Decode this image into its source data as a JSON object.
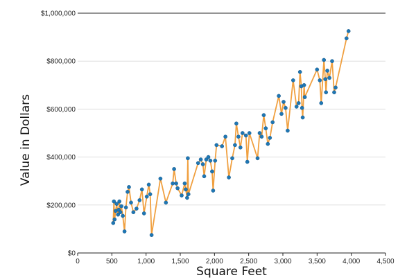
{
  "chart_data": {
    "type": "line",
    "xlabel": "Square Feet",
    "ylabel": "Value in Dollars",
    "xlim": [
      0,
      4500
    ],
    "ylim": [
      0,
      1000000
    ],
    "x_ticks": [
      0,
      500,
      1000,
      1500,
      2000,
      2500,
      3000,
      3500,
      4000,
      4500
    ],
    "x_tick_labels": [
      "0",
      "500",
      "1,000",
      "1,500",
      "2,000",
      "2,500",
      "3,000",
      "3,500",
      "4,000",
      "4,500"
    ],
    "y_ticks": [
      0,
      200000,
      400000,
      600000,
      800000,
      1000000
    ],
    "y_tick_labels": [
      "$0",
      "$200,000",
      "$400,000",
      "$600,000",
      "$800,000",
      "$1,000,000"
    ],
    "grid": "horizontal",
    "line_color": "#f0a040",
    "marker_color": "#1f77b4",
    "points": [
      {
        "x": 520,
        "y": 125000
      },
      {
        "x": 530,
        "y": 215000
      },
      {
        "x": 540,
        "y": 140000
      },
      {
        "x": 555,
        "y": 175000
      },
      {
        "x": 570,
        "y": 205000
      },
      {
        "x": 590,
        "y": 160000
      },
      {
        "x": 600,
        "y": 180000
      },
      {
        "x": 610,
        "y": 215000
      },
      {
        "x": 625,
        "y": 170000
      },
      {
        "x": 640,
        "y": 195000
      },
      {
        "x": 660,
        "y": 155000
      },
      {
        "x": 685,
        "y": 90000
      },
      {
        "x": 705,
        "y": 190000
      },
      {
        "x": 730,
        "y": 255000
      },
      {
        "x": 750,
        "y": 275000
      },
      {
        "x": 780,
        "y": 210000
      },
      {
        "x": 815,
        "y": 170000
      },
      {
        "x": 860,
        "y": 185000
      },
      {
        "x": 905,
        "y": 220000
      },
      {
        "x": 940,
        "y": 265000
      },
      {
        "x": 970,
        "y": 165000
      },
      {
        "x": 1010,
        "y": 235000
      },
      {
        "x": 1040,
        "y": 285000
      },
      {
        "x": 1060,
        "y": 245000
      },
      {
        "x": 1080,
        "y": 75000
      },
      {
        "x": 1210,
        "y": 310000
      },
      {
        "x": 1290,
        "y": 210000
      },
      {
        "x": 1390,
        "y": 290000
      },
      {
        "x": 1410,
        "y": 350000
      },
      {
        "x": 1440,
        "y": 290000
      },
      {
        "x": 1460,
        "y": 270000
      },
      {
        "x": 1520,
        "y": 240000
      },
      {
        "x": 1565,
        "y": 290000
      },
      {
        "x": 1580,
        "y": 265000
      },
      {
        "x": 1600,
        "y": 230000
      },
      {
        "x": 1610,
        "y": 395000
      },
      {
        "x": 1620,
        "y": 245000
      },
      {
        "x": 1760,
        "y": 375000
      },
      {
        "x": 1800,
        "y": 390000
      },
      {
        "x": 1830,
        "y": 370000
      },
      {
        "x": 1850,
        "y": 320000
      },
      {
        "x": 1880,
        "y": 390000
      },
      {
        "x": 1910,
        "y": 400000
      },
      {
        "x": 1940,
        "y": 385000
      },
      {
        "x": 1965,
        "y": 340000
      },
      {
        "x": 1980,
        "y": 260000
      },
      {
        "x": 2010,
        "y": 385000
      },
      {
        "x": 2030,
        "y": 450000
      },
      {
        "x": 2110,
        "y": 445000
      },
      {
        "x": 2160,
        "y": 485000
      },
      {
        "x": 2210,
        "y": 315000
      },
      {
        "x": 2260,
        "y": 395000
      },
      {
        "x": 2300,
        "y": 450000
      },
      {
        "x": 2320,
        "y": 540000
      },
      {
        "x": 2350,
        "y": 485000
      },
      {
        "x": 2380,
        "y": 440000
      },
      {
        "x": 2410,
        "y": 500000
      },
      {
        "x": 2460,
        "y": 490000
      },
      {
        "x": 2480,
        "y": 380000
      },
      {
        "x": 2510,
        "y": 500000
      },
      {
        "x": 2630,
        "y": 395000
      },
      {
        "x": 2660,
        "y": 500000
      },
      {
        "x": 2690,
        "y": 485000
      },
      {
        "x": 2720,
        "y": 575000
      },
      {
        "x": 2750,
        "y": 520000
      },
      {
        "x": 2780,
        "y": 455000
      },
      {
        "x": 2810,
        "y": 480000
      },
      {
        "x": 2850,
        "y": 545000
      },
      {
        "x": 2940,
        "y": 655000
      },
      {
        "x": 2980,
        "y": 580000
      },
      {
        "x": 3010,
        "y": 630000
      },
      {
        "x": 3040,
        "y": 605000
      },
      {
        "x": 3070,
        "y": 510000
      },
      {
        "x": 3150,
        "y": 720000
      },
      {
        "x": 3200,
        "y": 610000
      },
      {
        "x": 3230,
        "y": 625000
      },
      {
        "x": 3250,
        "y": 755000
      },
      {
        "x": 3270,
        "y": 695000
      },
      {
        "x": 3280,
        "y": 605000
      },
      {
        "x": 3290,
        "y": 565000
      },
      {
        "x": 3310,
        "y": 700000
      },
      {
        "x": 3320,
        "y": 650000
      },
      {
        "x": 3500,
        "y": 765000
      },
      {
        "x": 3540,
        "y": 720000
      },
      {
        "x": 3560,
        "y": 625000
      },
      {
        "x": 3600,
        "y": 805000
      },
      {
        "x": 3620,
        "y": 725000
      },
      {
        "x": 3630,
        "y": 670000
      },
      {
        "x": 3650,
        "y": 760000
      },
      {
        "x": 3680,
        "y": 730000
      },
      {
        "x": 3720,
        "y": 800000
      },
      {
        "x": 3750,
        "y": 670000
      },
      {
        "x": 3770,
        "y": 690000
      },
      {
        "x": 3930,
        "y": 895000
      },
      {
        "x": 3960,
        "y": 925000
      }
    ]
  }
}
